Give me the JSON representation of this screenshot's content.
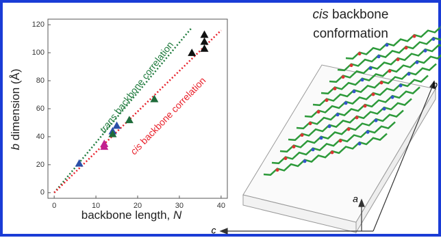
{
  "chart_data": {
    "type": "scatter",
    "title": {
      "italic": "cis",
      "text": " backbone",
      "line2": "conformation"
    },
    "xlabel": {
      "text": "backbone length, ",
      "italic": "N"
    },
    "ylabel": {
      "italic": "b",
      "text": " dimension (Å)"
    },
    "xlim": [
      -1.5,
      41.5
    ],
    "ylim": [
      -4,
      124
    ],
    "xticks": [
      0,
      10,
      20,
      30,
      40
    ],
    "yticks": [
      0,
      20,
      40,
      60,
      80,
      100,
      120
    ],
    "lines": [
      {
        "color": "#1e7a3c",
        "x": [
          0,
          33
        ],
        "values": [
          0,
          118
        ],
        "label": {
          "italic": "trans",
          "text": " backbone correlation"
        }
      },
      {
        "color": "#e8202a",
        "x": [
          0,
          40
        ],
        "values": [
          0,
          116
        ],
        "label": {
          "italic": "cis",
          "text": " backbone correlation"
        }
      }
    ],
    "series": [
      {
        "color": "#2b4fa8",
        "x": [
          6,
          14,
          15
        ],
        "values": [
          21,
          44,
          48
        ]
      },
      {
        "color": "#c2218f",
        "x": [
          12,
          12
        ],
        "values": [
          35,
          33
        ]
      },
      {
        "color": "#1f6b3a",
        "x": [
          14,
          18,
          24
        ],
        "values": [
          42,
          52,
          67
        ]
      },
      {
        "color": "#111111",
        "x": [
          33,
          36,
          36,
          36
        ],
        "values": [
          100,
          103,
          113,
          108
        ]
      }
    ],
    "diagram_axes": [
      "a",
      "b",
      "c"
    ]
  }
}
